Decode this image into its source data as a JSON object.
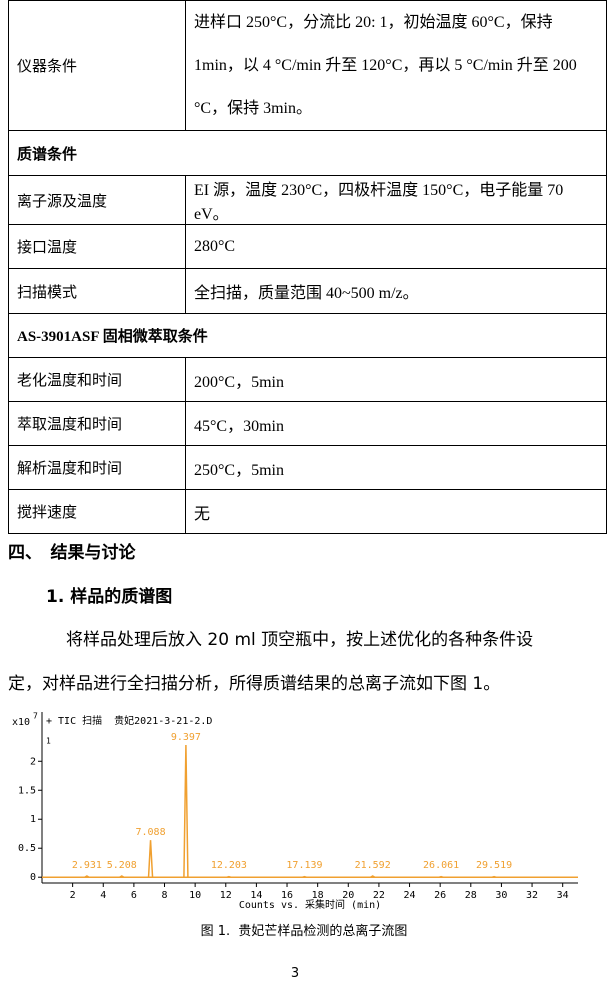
{
  "table": {
    "rows": [
      [
        "仪器条件",
        "进样口 250°C，分流比 20: 1，初始温度 60°C，保持 1min，以 4 °C/min 升至 120°C，再以 5 °C/min 升至 200 °C，保持 3min。"
      ],
      [
        "质谱条件"
      ],
      [
        "离子源及温度",
        "EI 源，温度 230°C，四极杆温度 150°C，电子能量 70 eV。"
      ],
      [
        "接口温度",
        "280°C"
      ],
      [
        "扫描模式",
        "全扫描，质量范围 40~500 m/z。"
      ],
      [
        "AS-3901ASF 固相微萃取条件"
      ],
      [
        "老化温度和时间",
        "200°C，5min"
      ],
      [
        "萃取温度和时间",
        "45°C，30min"
      ],
      [
        "解析温度和时间",
        "250°C，5min"
      ],
      [
        "搅拌速度",
        "无"
      ]
    ]
  },
  "section": {
    "title": "四、　结果与讨论",
    "subtitle": "1. 样品的质谱图",
    "paragraph": [
      "将样品处理后放入 20 ml 顶空瓶中，按上述优化的各种条件设",
      "定，对样品进行全扫描分析，所得质谱结果的总离子流如下图 1。"
    ]
  },
  "chart_data": {
    "type": "peaks",
    "annotation": "+ TIC 扫描  贵妃2021-3-21-2.D",
    "trace_index": "1",
    "y_label": "x10",
    "y_label_exponent": "7",
    "x_label": "Counts vs. 采集时间 (min)",
    "x": [
      2.931,
      5.208,
      7.088,
      9.397,
      12.203,
      17.139,
      21.592,
      26.061,
      29.519
    ],
    "values": [
      0.02,
      0.02,
      0.64,
      2.28,
      0.01,
      0.01,
      0.02,
      0.01,
      0.01
    ],
    "color": "#f0a030",
    "xlim": [
      0,
      35
    ],
    "xticks": [
      2,
      4,
      6,
      8,
      10,
      12,
      14,
      16,
      18,
      20,
      22,
      24,
      26,
      28,
      30,
      32,
      34
    ],
    "ylim": [
      -0.1,
      2.85
    ],
    "yticks": [
      0,
      0.5,
      1,
      1.5,
      2
    ]
  },
  "caption": "图 1.  贵妃芒样品检测的总离子流图",
  "page_number": "3"
}
